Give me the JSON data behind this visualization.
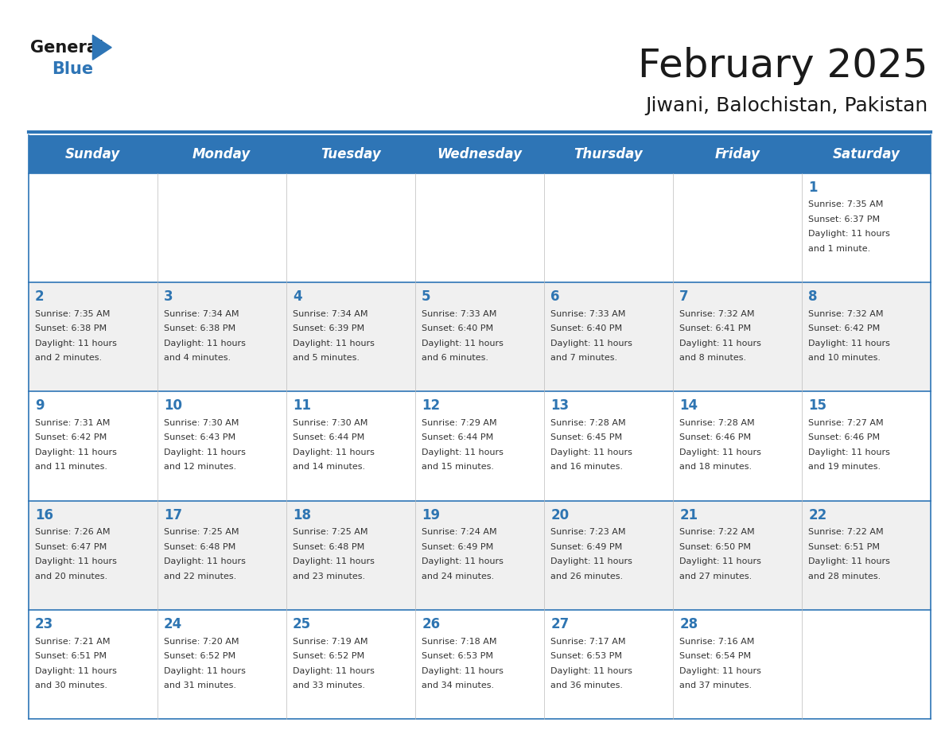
{
  "title": "February 2025",
  "subtitle": "Jiwani, Balochistan, Pakistan",
  "header_bg": "#2E75B6",
  "header_text_color": "#FFFFFF",
  "day_names": [
    "Sunday",
    "Monday",
    "Tuesday",
    "Wednesday",
    "Thursday",
    "Friday",
    "Saturday"
  ],
  "row_bg_odd": "#FFFFFF",
  "row_bg_even": "#F0F0F0",
  "cell_border_color": "#2E75B6",
  "date_color": "#2E75B2",
  "info_color": "#333333",
  "title_color": "#1a1a1a",
  "subtitle_color": "#1a1a1a",
  "logo_general_color": "#1a1a1a",
  "logo_blue_color": "#2E75B6",
  "calendar_data": [
    [
      null,
      null,
      null,
      null,
      null,
      null,
      {
        "day": 1,
        "sunrise": "7:35 AM",
        "sunset": "6:37 PM",
        "daylight_line1": "Daylight: 11 hours",
        "daylight_line2": "and 1 minute."
      }
    ],
    [
      {
        "day": 2,
        "sunrise": "7:35 AM",
        "sunset": "6:38 PM",
        "daylight_line1": "Daylight: 11 hours",
        "daylight_line2": "and 2 minutes."
      },
      {
        "day": 3,
        "sunrise": "7:34 AM",
        "sunset": "6:38 PM",
        "daylight_line1": "Daylight: 11 hours",
        "daylight_line2": "and 4 minutes."
      },
      {
        "day": 4,
        "sunrise": "7:34 AM",
        "sunset": "6:39 PM",
        "daylight_line1": "Daylight: 11 hours",
        "daylight_line2": "and 5 minutes."
      },
      {
        "day": 5,
        "sunrise": "7:33 AM",
        "sunset": "6:40 PM",
        "daylight_line1": "Daylight: 11 hours",
        "daylight_line2": "and 6 minutes."
      },
      {
        "day": 6,
        "sunrise": "7:33 AM",
        "sunset": "6:40 PM",
        "daylight_line1": "Daylight: 11 hours",
        "daylight_line2": "and 7 minutes."
      },
      {
        "day": 7,
        "sunrise": "7:32 AM",
        "sunset": "6:41 PM",
        "daylight_line1": "Daylight: 11 hours",
        "daylight_line2": "and 8 minutes."
      },
      {
        "day": 8,
        "sunrise": "7:32 AM",
        "sunset": "6:42 PM",
        "daylight_line1": "Daylight: 11 hours",
        "daylight_line2": "and 10 minutes."
      }
    ],
    [
      {
        "day": 9,
        "sunrise": "7:31 AM",
        "sunset": "6:42 PM",
        "daylight_line1": "Daylight: 11 hours",
        "daylight_line2": "and 11 minutes."
      },
      {
        "day": 10,
        "sunrise": "7:30 AM",
        "sunset": "6:43 PM",
        "daylight_line1": "Daylight: 11 hours",
        "daylight_line2": "and 12 minutes."
      },
      {
        "day": 11,
        "sunrise": "7:30 AM",
        "sunset": "6:44 PM",
        "daylight_line1": "Daylight: 11 hours",
        "daylight_line2": "and 14 minutes."
      },
      {
        "day": 12,
        "sunrise": "7:29 AM",
        "sunset": "6:44 PM",
        "daylight_line1": "Daylight: 11 hours",
        "daylight_line2": "and 15 minutes."
      },
      {
        "day": 13,
        "sunrise": "7:28 AM",
        "sunset": "6:45 PM",
        "daylight_line1": "Daylight: 11 hours",
        "daylight_line2": "and 16 minutes."
      },
      {
        "day": 14,
        "sunrise": "7:28 AM",
        "sunset": "6:46 PM",
        "daylight_line1": "Daylight: 11 hours",
        "daylight_line2": "and 18 minutes."
      },
      {
        "day": 15,
        "sunrise": "7:27 AM",
        "sunset": "6:46 PM",
        "daylight_line1": "Daylight: 11 hours",
        "daylight_line2": "and 19 minutes."
      }
    ],
    [
      {
        "day": 16,
        "sunrise": "7:26 AM",
        "sunset": "6:47 PM",
        "daylight_line1": "Daylight: 11 hours",
        "daylight_line2": "and 20 minutes."
      },
      {
        "day": 17,
        "sunrise": "7:25 AM",
        "sunset": "6:48 PM",
        "daylight_line1": "Daylight: 11 hours",
        "daylight_line2": "and 22 minutes."
      },
      {
        "day": 18,
        "sunrise": "7:25 AM",
        "sunset": "6:48 PM",
        "daylight_line1": "Daylight: 11 hours",
        "daylight_line2": "and 23 minutes."
      },
      {
        "day": 19,
        "sunrise": "7:24 AM",
        "sunset": "6:49 PM",
        "daylight_line1": "Daylight: 11 hours",
        "daylight_line2": "and 24 minutes."
      },
      {
        "day": 20,
        "sunrise": "7:23 AM",
        "sunset": "6:49 PM",
        "daylight_line1": "Daylight: 11 hours",
        "daylight_line2": "and 26 minutes."
      },
      {
        "day": 21,
        "sunrise": "7:22 AM",
        "sunset": "6:50 PM",
        "daylight_line1": "Daylight: 11 hours",
        "daylight_line2": "and 27 minutes."
      },
      {
        "day": 22,
        "sunrise": "7:22 AM",
        "sunset": "6:51 PM",
        "daylight_line1": "Daylight: 11 hours",
        "daylight_line2": "and 28 minutes."
      }
    ],
    [
      {
        "day": 23,
        "sunrise": "7:21 AM",
        "sunset": "6:51 PM",
        "daylight_line1": "Daylight: 11 hours",
        "daylight_line2": "and 30 minutes."
      },
      {
        "day": 24,
        "sunrise": "7:20 AM",
        "sunset": "6:52 PM",
        "daylight_line1": "Daylight: 11 hours",
        "daylight_line2": "and 31 minutes."
      },
      {
        "day": 25,
        "sunrise": "7:19 AM",
        "sunset": "6:52 PM",
        "daylight_line1": "Daylight: 11 hours",
        "daylight_line2": "and 33 minutes."
      },
      {
        "day": 26,
        "sunrise": "7:18 AM",
        "sunset": "6:53 PM",
        "daylight_line1": "Daylight: 11 hours",
        "daylight_line2": "and 34 minutes."
      },
      {
        "day": 27,
        "sunrise": "7:17 AM",
        "sunset": "6:53 PM",
        "daylight_line1": "Daylight: 11 hours",
        "daylight_line2": "and 36 minutes."
      },
      {
        "day": 28,
        "sunrise": "7:16 AM",
        "sunset": "6:54 PM",
        "daylight_line1": "Daylight: 11 hours",
        "daylight_line2": "and 37 minutes."
      },
      null
    ]
  ]
}
